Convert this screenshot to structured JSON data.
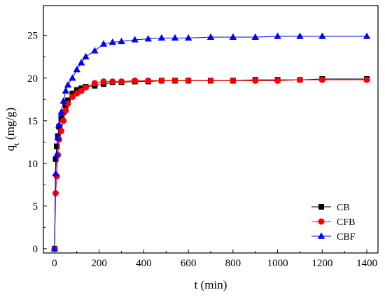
{
  "chart_data": {
    "type": "line",
    "title": "",
    "xlabel": "t (min)",
    "ylabel_main": "q",
    "ylabel_sub": "t",
    "ylabel_unit": " (mg/g)",
    "xlim": [
      -50,
      1450
    ],
    "ylim": [
      -0.5,
      28.5
    ],
    "xticks": [
      0,
      200,
      400,
      600,
      800,
      1000,
      1200,
      1400
    ],
    "yticks": [
      0,
      5,
      10,
      15,
      20,
      25
    ],
    "grid": false,
    "legend_position": "lower-right",
    "series": [
      {
        "name": "CB",
        "color": "#000000",
        "marker": "square",
        "x": [
          0,
          5,
          10,
          15,
          20,
          30,
          40,
          50,
          60,
          80,
          100,
          120,
          140,
          180,
          220,
          260,
          300,
          360,
          420,
          480,
          540,
          600,
          700,
          800,
          900,
          1000,
          1100,
          1200,
          1400
        ],
        "y": [
          0,
          10.5,
          12.0,
          13.2,
          14.3,
          15.3,
          16.0,
          16.8,
          17.4,
          18.2,
          18.6,
          18.8,
          19.0,
          19.1,
          19.3,
          19.5,
          19.5,
          19.6,
          19.6,
          19.7,
          19.7,
          19.7,
          19.7,
          19.7,
          19.8,
          19.8,
          19.8,
          19.9,
          19.9
        ]
      },
      {
        "name": "CFB",
        "color": "#ff0000",
        "marker": "circle",
        "x": [
          0,
          5,
          10,
          15,
          20,
          30,
          40,
          50,
          60,
          80,
          100,
          120,
          140,
          180,
          220,
          260,
          300,
          360,
          420,
          480,
          540,
          600,
          700,
          800,
          900,
          1000,
          1100,
          1200,
          1400
        ],
        "y": [
          0,
          6.5,
          8.5,
          11.0,
          12.8,
          13.8,
          15.0,
          16.2,
          17.0,
          17.8,
          18.2,
          18.5,
          18.9,
          19.4,
          19.6,
          19.6,
          19.6,
          19.7,
          19.7,
          19.7,
          19.7,
          19.7,
          19.7,
          19.7,
          19.7,
          19.7,
          19.8,
          19.8,
          19.8
        ]
      },
      {
        "name": "CBF",
        "color": "#0000ff",
        "marker": "triangle",
        "x": [
          0,
          5,
          10,
          15,
          20,
          30,
          40,
          50,
          60,
          80,
          100,
          120,
          140,
          180,
          220,
          260,
          300,
          360,
          420,
          480,
          540,
          600,
          700,
          800,
          900,
          1000,
          1100,
          1200,
          1400
        ],
        "y": [
          0,
          8.8,
          11.0,
          13.0,
          14.5,
          16.0,
          17.3,
          18.5,
          19.2,
          20.0,
          21.0,
          21.8,
          22.5,
          23.2,
          24.0,
          24.2,
          24.3,
          24.5,
          24.6,
          24.7,
          24.7,
          24.7,
          24.8,
          24.8,
          24.8,
          24.9,
          24.9,
          24.9,
          24.9
        ]
      }
    ]
  }
}
